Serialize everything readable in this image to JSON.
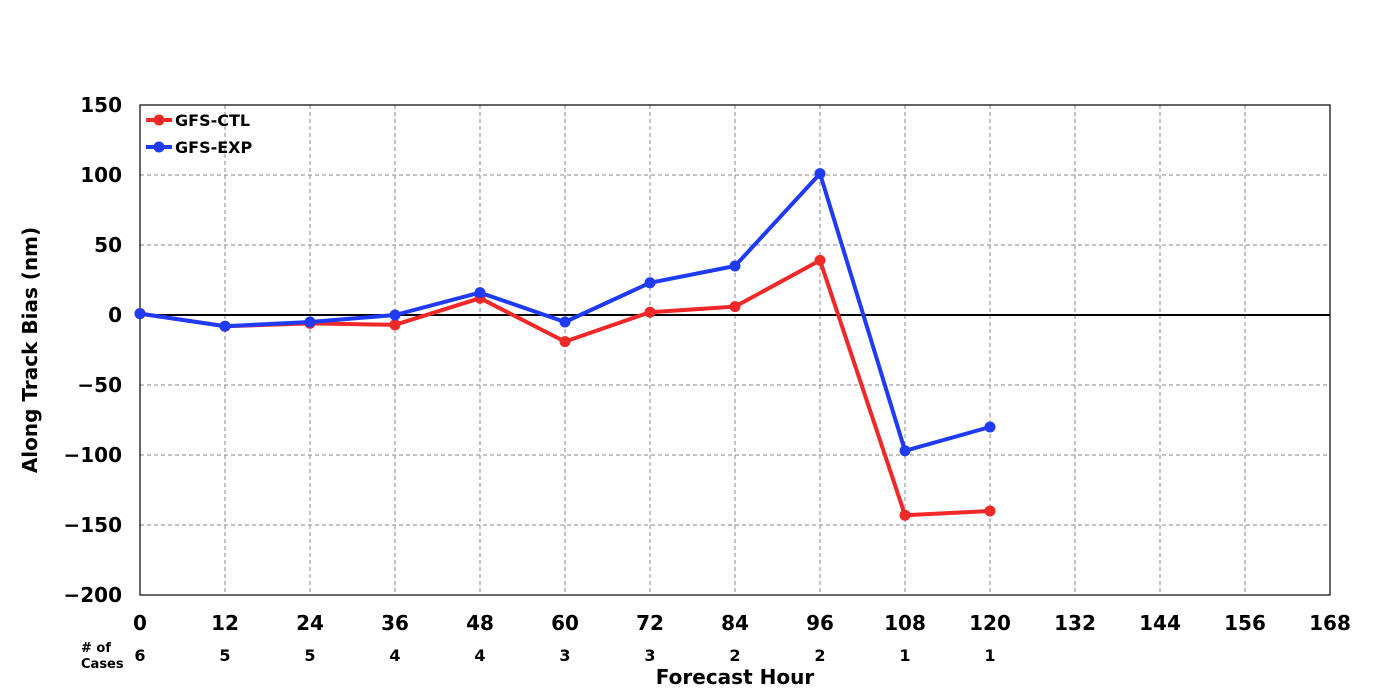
{
  "chart_data": {
    "type": "line",
    "xlabel": "Forecast Hour",
    "ylabel": "Along Track Bias (nm)",
    "xlim": [
      0,
      168
    ],
    "ylim": [
      -200,
      150
    ],
    "xticks": [
      0,
      12,
      24,
      36,
      48,
      60,
      72,
      84,
      96,
      108,
      120,
      132,
      144,
      156,
      168
    ],
    "yticks": [
      150,
      100,
      50,
      0,
      -50,
      -100,
      -150,
      -200
    ],
    "ytick_labels": [
      "150",
      "100",
      "50",
      "0",
      "−50",
      "−100",
      "−150",
      "−200"
    ],
    "grid": true,
    "legend_position": "top-left",
    "x": [
      0,
      12,
      24,
      36,
      48,
      60,
      72,
      84,
      96,
      108,
      120
    ],
    "series": [
      {
        "name": "GFS-CTL",
        "color": "#f02828",
        "values": [
          1,
          -8,
          -6,
          -7,
          12,
          -19,
          2,
          6,
          39,
          -143,
          -140
        ]
      },
      {
        "name": "GFS-EXP",
        "color": "#1f3bf5",
        "values": [
          1,
          -8,
          -5,
          0,
          16,
          -5,
          23,
          35,
          101,
          -97,
          -80
        ]
      }
    ],
    "cases": {
      "label_line1": "# of",
      "label_line2": "Cases",
      "x": [
        0,
        12,
        24,
        36,
        48,
        60,
        72,
        84,
        96,
        108,
        120
      ],
      "values": [
        "6",
        "5",
        "5",
        "4",
        "4",
        "3",
        "3",
        "2",
        "2",
        "1",
        "1"
      ]
    }
  }
}
